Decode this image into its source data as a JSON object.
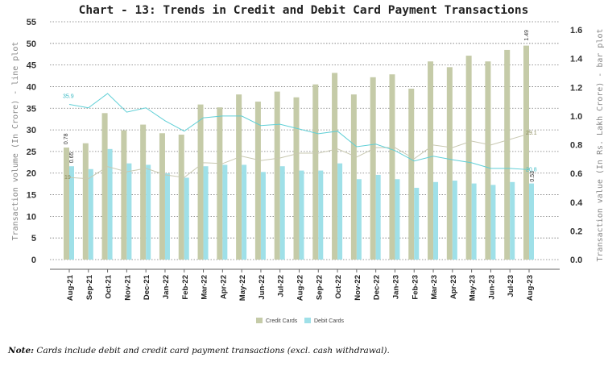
{
  "chart_data": {
    "type": "bar+line",
    "title": "Chart - 13: Trends in Credit and Debit Card Payment Transactions",
    "ylabel_left": "Transaction volume (In Crore) - line plot",
    "ylabel_right": "Transaction value (In Rs. Lakh Crore) - bar plot",
    "ylim_left": [
      0,
      55
    ],
    "yticks_left": [
      0,
      5,
      10,
      15,
      20,
      25,
      30,
      35,
      40,
      45,
      50,
      55
    ],
    "ylim_right": [
      0,
      1.6
    ],
    "yticks_right": [
      "0.0",
      "0.2",
      "0.4",
      "0.6",
      "0.8",
      "1.0",
      "1.2",
      "1.4",
      "1.6"
    ],
    "grid": true,
    "legend_position": "bottom",
    "categories": [
      "Aug-21",
      "Sep-21",
      "Oct-21",
      "Nov-21",
      "Dec-21",
      "Jan-22",
      "Feb-22",
      "Mar-22",
      "Apr-22",
      "May-22",
      "Jun-22",
      "Jul-22",
      "Aug-22",
      "Sep-22",
      "Oct-22",
      "Nov-22",
      "Dec-22",
      "Jan-23",
      "Feb-23",
      "Mar-23",
      "Apr-23",
      "May-23",
      "Jun-23",
      "Jul-23",
      "Aug-23"
    ],
    "bar_series": [
      {
        "name": "Credit Cards",
        "color": "#c5cba8",
        "values": [
          0.78,
          0.81,
          1.02,
          0.9,
          0.94,
          0.88,
          0.87,
          1.08,
          1.06,
          1.15,
          1.1,
          1.17,
          1.13,
          1.22,
          1.3,
          1.15,
          1.27,
          1.29,
          1.19,
          1.38,
          1.34,
          1.42,
          1.38,
          1.46,
          1.49
        ]
      },
      {
        "name": "Debit Cards",
        "color": "#9fe0e8",
        "values": [
          0.65,
          0.63,
          0.77,
          0.67,
          0.66,
          0.6,
          0.57,
          0.65,
          0.66,
          0.66,
          0.61,
          0.65,
          0.62,
          0.62,
          0.67,
          0.56,
          0.59,
          0.56,
          0.5,
          0.54,
          0.55,
          0.53,
          0.52,
          0.54,
          0.53
        ]
      }
    ],
    "line_series": [
      {
        "series": "Credit Cards",
        "color": "#c8c8b0",
        "values": [
          19,
          18.7,
          21.5,
          20.3,
          21.1,
          19.6,
          19.0,
          22.4,
          22.2,
          23.9,
          22.9,
          23.5,
          24.6,
          24.6,
          25.6,
          23.7,
          25.9,
          25.9,
          23.3,
          26.5,
          25.9,
          27.4,
          26.5,
          27.8,
          29.1
        ]
      },
      {
        "series": "Debit Cards",
        "color": "#5fcfd6",
        "values": [
          35.9,
          35.1,
          38.4,
          34.1,
          35.1,
          32.1,
          29.7,
          32.8,
          33.2,
          33.2,
          31.0,
          31.3,
          30.2,
          29.1,
          29.7,
          26.1,
          26.7,
          25.2,
          22.8,
          23.9,
          23.1,
          22.4,
          21.1,
          21.1,
          20.8
        ]
      }
    ],
    "annotations": {
      "credit_bar_first": "0.78",
      "debit_bar_first": "0.65",
      "credit_bar_last": "1.49",
      "debit_bar_last": "0.53",
      "credit_line_first": "19",
      "debit_line_first": "35.9",
      "credit_line_last": "29.1",
      "debit_line_last": "20.8"
    }
  },
  "note": {
    "label": "Note:",
    "text": " Cards include debit and credit card payment transactions (excl. cash withdrawal)."
  }
}
